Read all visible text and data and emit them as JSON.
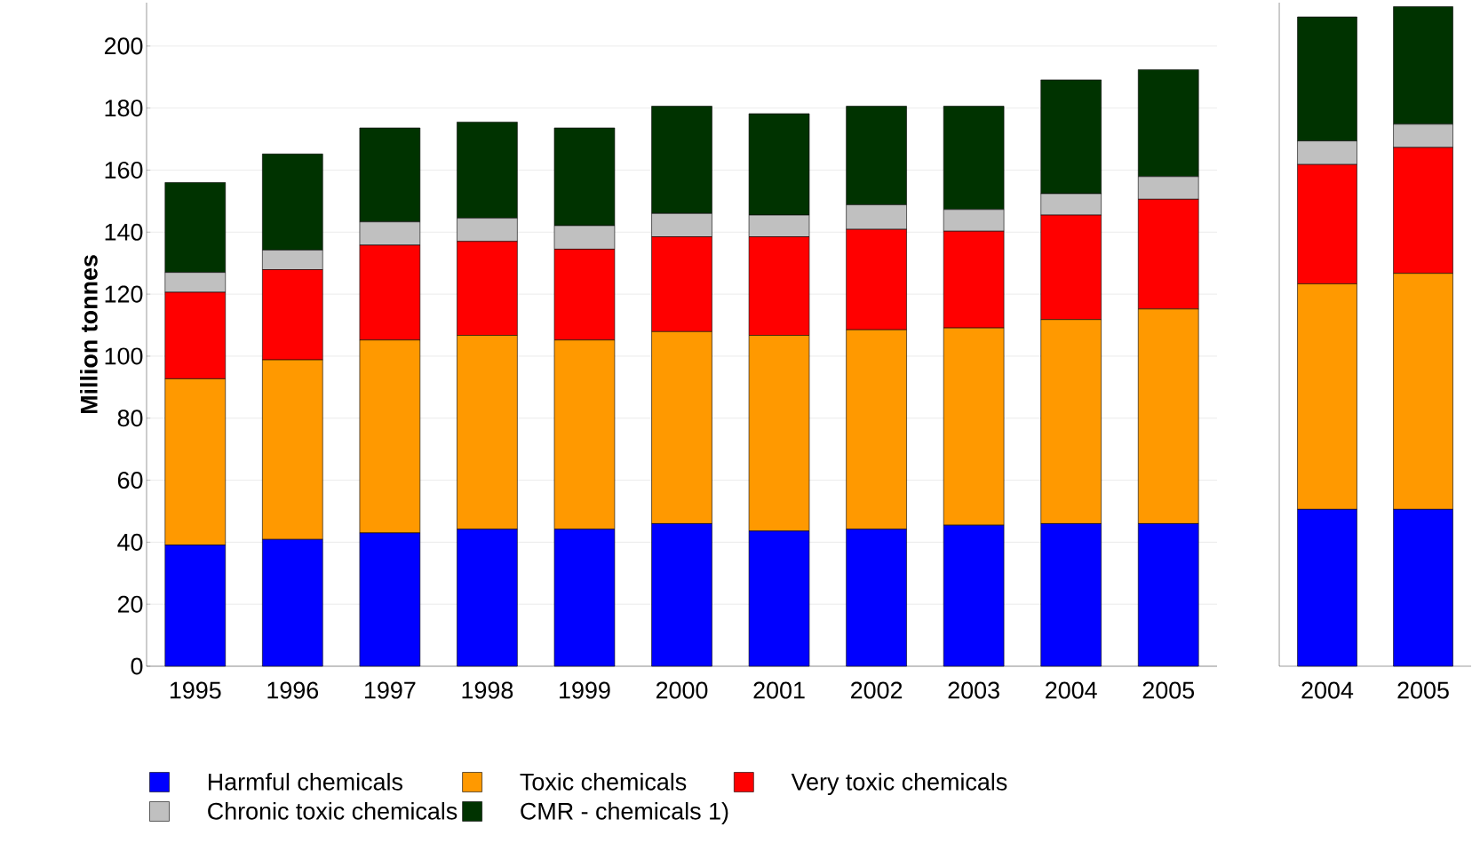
{
  "chart_data": [
    {
      "type": "bar",
      "stacked": true,
      "ylabel": "Million tonnes",
      "categories": [
        "1995",
        "1996",
        "1997",
        "1998",
        "1999",
        "2000",
        "2001",
        "2002",
        "2003",
        "2004",
        "2005"
      ],
      "series": [
        {
          "name": "Harmful chemicals",
          "color": "#0000ff",
          "values": [
            39.1,
            40.9,
            43,
            44.2,
            44.2,
            46,
            43.6,
            44.2,
            45.5,
            46,
            46
          ]
        },
        {
          "name": "Toxic chemicals",
          "color": "#ff9900",
          "values": [
            53.6,
            57.9,
            62.2,
            62.5,
            61,
            61.9,
            63.1,
            64.3,
            63.6,
            65.8,
            69.2
          ]
        },
        {
          "name": "Very toxic chemicals",
          "color": "#ff0000",
          "values": [
            27.9,
            29.1,
            30.6,
            30.3,
            29.3,
            30.6,
            31.8,
            32.4,
            31.2,
            33.7,
            35.4
          ]
        },
        {
          "name": "Chronic toxic chemicals",
          "color": "#c0c0c0",
          "values": [
            6.4,
            6.3,
            7.5,
            7.5,
            7.6,
            7.5,
            7,
            7.9,
            7,
            6.9,
            7.3
          ]
        },
        {
          "name": "CMR - chemicals 1)",
          "color": "#003300",
          "values": [
            29,
            31,
            30.3,
            31,
            31.5,
            34.6,
            32.7,
            31.8,
            33.3,
            36.7,
            34.5
          ]
        }
      ],
      "ylim": [
        0,
        214
      ],
      "yticks": [
        0,
        20,
        40,
        60,
        80,
        100,
        120,
        140,
        160,
        180,
        200
      ],
      "grid": "y",
      "legend": "bottom"
    },
    {
      "type": "bar",
      "stacked": true,
      "tick_labels": "x",
      "categories": [
        "2004",
        "2005"
      ],
      "series": [
        {
          "color": "#0000ff",
          "values": [
            50.6,
            50.6
          ]
        },
        {
          "color": "#ff9900",
          "values": [
            72.7,
            76.1
          ]
        },
        {
          "color": "#ff0000",
          "values": [
            38.5,
            40.6
          ]
        },
        {
          "color": "#c0c0c0",
          "values": [
            7.6,
            7.5
          ]
        },
        {
          "color": "#003300",
          "values": [
            40,
            37.9
          ]
        }
      ],
      "ylim": [
        0,
        214
      ]
    }
  ]
}
